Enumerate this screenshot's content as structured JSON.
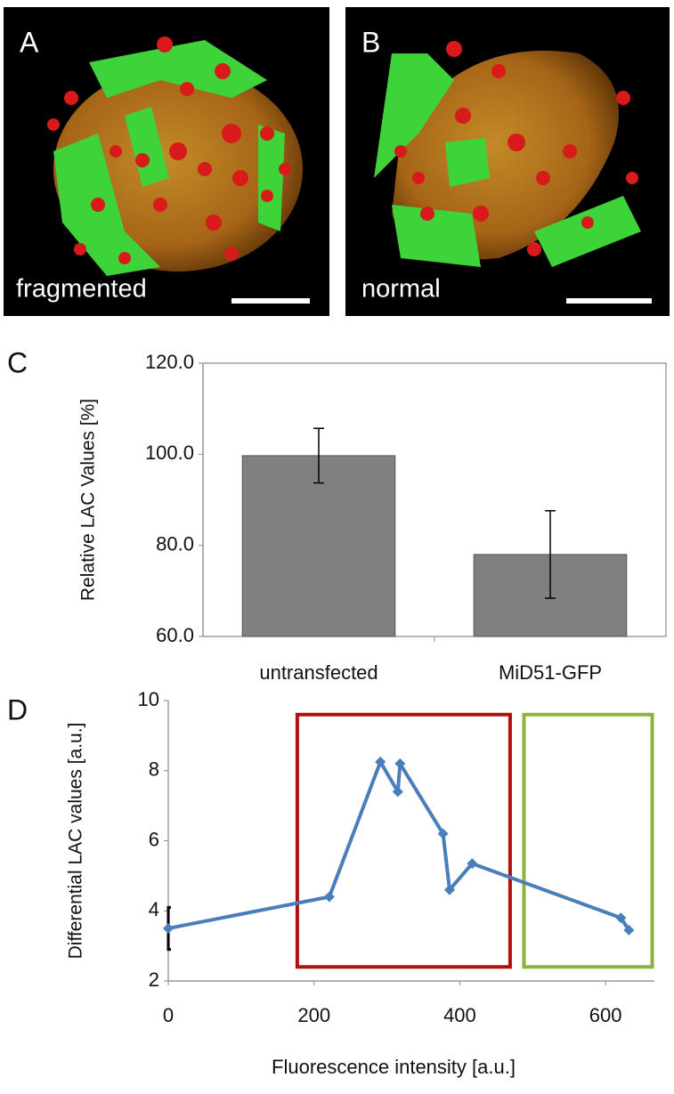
{
  "images": [
    {
      "label": "A",
      "caption": "fragmented"
    },
    {
      "label": "B",
      "caption": "normal"
    }
  ],
  "chart_data": [
    {
      "type": "bar",
      "panel": "C",
      "ylabel": "Relative LAC Values [%]",
      "categories": [
        "untransfected",
        "MiD51-GFP"
      ],
      "values": [
        99.7,
        78
      ],
      "errors": [
        6,
        9.6
      ],
      "color": "#808080",
      "ylim": [
        60,
        120
      ],
      "yticks": [
        {
          "value": 60,
          "label": "60.0"
        },
        {
          "value": 80,
          "label": "80.0"
        },
        {
          "value": 100,
          "label": "100.0"
        },
        {
          "value": 120,
          "label": "120.0"
        }
      ]
    },
    {
      "type": "line",
      "panel": "D",
      "xlabel": "Fluorescence intensity [a.u.]",
      "ylabel": "Differential LAC values [a.u.]",
      "x": [
        0,
        221,
        291,
        315,
        318,
        377,
        386,
        417,
        621,
        632
      ],
      "values": [
        3.5,
        4.4,
        8.25,
        7.4,
        8.2,
        6.2,
        4.6,
        5.35,
        3.8,
        3.45
      ],
      "errors": [
        0.6,
        null,
        null,
        null,
        null,
        null,
        null,
        null,
        null,
        null
      ],
      "color": "#4a7ebb",
      "xlim": [
        0,
        667
      ],
      "xticks": [
        0,
        200,
        400,
        600
      ],
      "ylim": [
        2,
        10
      ],
      "yticks": [
        2,
        4,
        6,
        8,
        10
      ],
      "highlights": [
        {
          "x": [
            177,
            469
          ],
          "y": [
            2.4,
            9.6
          ],
          "color": "#b01010"
        },
        {
          "x": [
            488,
            664
          ],
          "y": [
            2.4,
            9.6
          ],
          "color": "#8db33c"
        }
      ]
    }
  ]
}
